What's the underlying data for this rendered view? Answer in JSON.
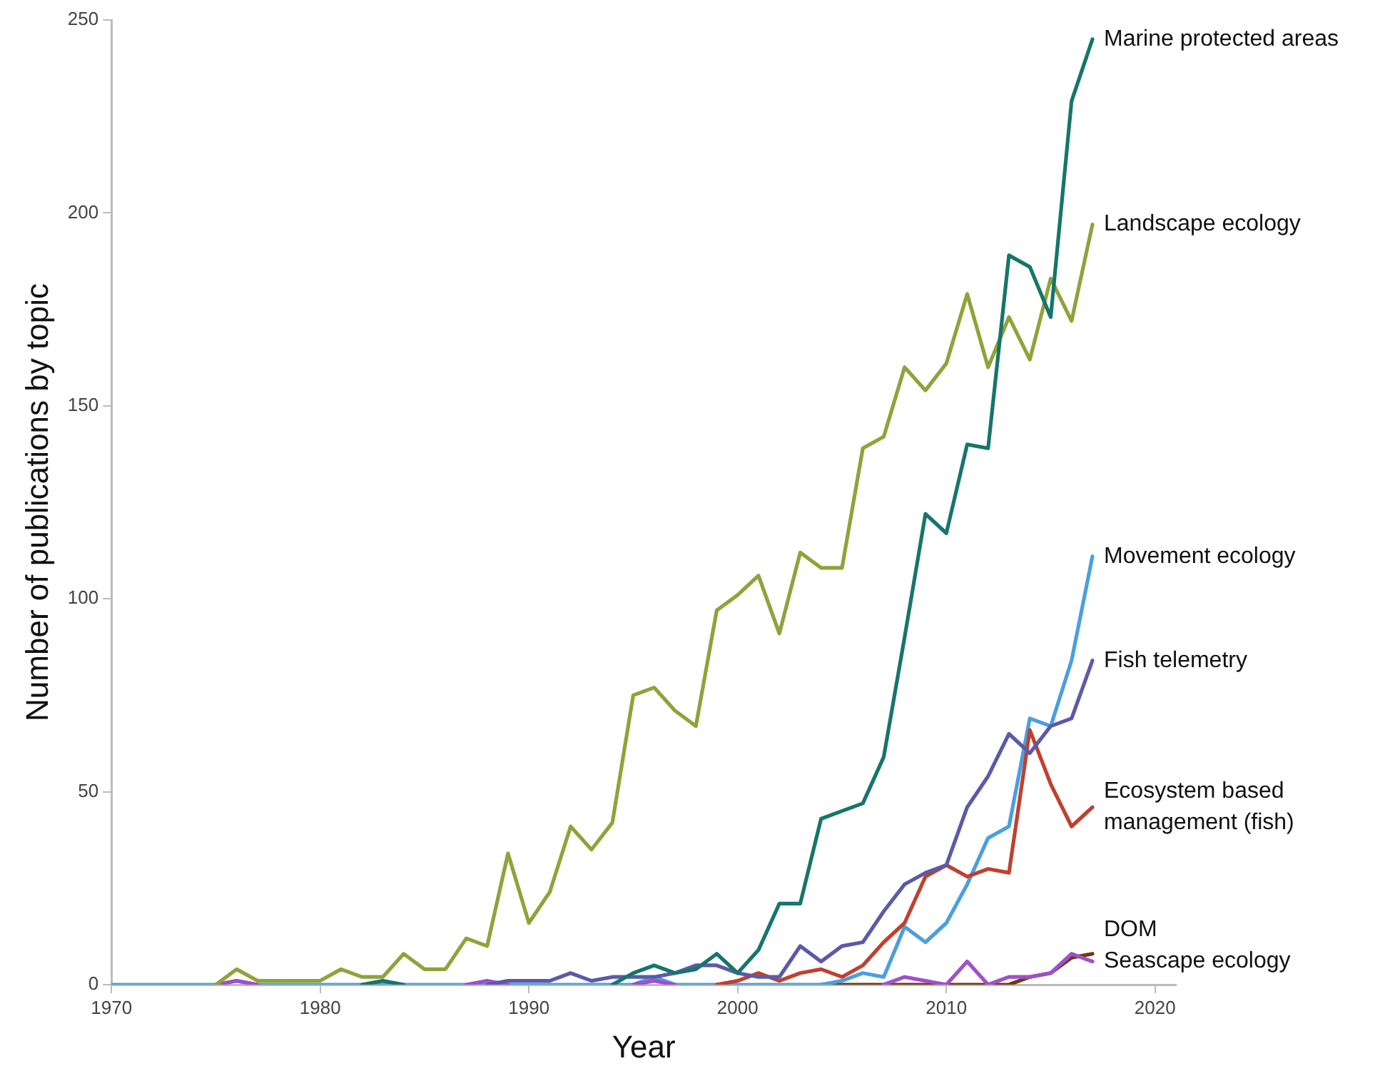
{
  "chart_data": {
    "type": "line",
    "xlabel": "Year",
    "ylabel": "Number of publications by topic",
    "x": [
      1970,
      1971,
      1972,
      1973,
      1974,
      1975,
      1976,
      1977,
      1978,
      1979,
      1980,
      1981,
      1982,
      1983,
      1984,
      1985,
      1986,
      1987,
      1988,
      1989,
      1990,
      1991,
      1992,
      1993,
      1994,
      1995,
      1996,
      1997,
      1998,
      1999,
      2000,
      2001,
      2002,
      2003,
      2004,
      2005,
      2006,
      2007,
      2008,
      2009,
      2010,
      2011,
      2012,
      2013,
      2014,
      2015,
      2016,
      2017
    ],
    "series": [
      {
        "name": "Marine protected areas",
        "color": "#17756b",
        "values": [
          null,
          null,
          null,
          null,
          null,
          null,
          null,
          null,
          null,
          null,
          null,
          null,
          0,
          1,
          0,
          null,
          null,
          null,
          null,
          null,
          null,
          null,
          null,
          null,
          0,
          3,
          5,
          3,
          4,
          8,
          3,
          9,
          21,
          21,
          43,
          45,
          47,
          59,
          90,
          122,
          117,
          140,
          139,
          189,
          186,
          173,
          229,
          245
        ]
      },
      {
        "name": "Landscape ecology",
        "color": "#8fa33a",
        "values": [
          null,
          null,
          null,
          null,
          null,
          0,
          4,
          1,
          1,
          1,
          1,
          4,
          2,
          2,
          8,
          4,
          4,
          12,
          10,
          34,
          16,
          24,
          41,
          35,
          42,
          75,
          77,
          71,
          67,
          97,
          101,
          106,
          91,
          112,
          108,
          108,
          139,
          142,
          160,
          154,
          161,
          179,
          160,
          173,
          162,
          183,
          172,
          197
        ]
      },
      {
        "name": "Fish telemetry",
        "color": "#5b5aa8",
        "values": [
          null,
          null,
          null,
          null,
          null,
          null,
          null,
          null,
          null,
          null,
          null,
          null,
          null,
          null,
          null,
          null,
          null,
          null,
          0,
          1,
          1,
          1,
          3,
          1,
          2,
          2,
          2,
          3,
          5,
          5,
          3,
          2,
          2,
          10,
          6,
          10,
          11,
          19,
          26,
          29,
          31,
          46,
          54,
          65,
          60,
          67,
          69,
          84
        ]
      },
      {
        "name": "Ecosystem based management (fish)",
        "color": "#c0402f",
        "values": [
          null,
          null,
          null,
          null,
          null,
          null,
          null,
          null,
          null,
          null,
          null,
          null,
          null,
          null,
          null,
          null,
          null,
          null,
          null,
          null,
          null,
          null,
          null,
          null,
          null,
          null,
          null,
          null,
          null,
          0,
          1,
          3,
          1,
          3,
          4,
          2,
          5,
          11,
          16,
          28,
          31,
          28,
          30,
          29,
          66,
          52,
          41,
          46
        ]
      },
      {
        "name": "Seascape ecology",
        "color": "#a050c8",
        "values": [
          null,
          null,
          null,
          null,
          null,
          0,
          1,
          0,
          null,
          null,
          null,
          null,
          null,
          null,
          null,
          null,
          null,
          0,
          1,
          0,
          null,
          null,
          null,
          null,
          null,
          0,
          1,
          0,
          null,
          null,
          null,
          null,
          null,
          null,
          null,
          null,
          null,
          0,
          2,
          1,
          0,
          6,
          0,
          2,
          2,
          3,
          8,
          6
        ]
      },
      {
        "name": "Movement ecology",
        "color": "#4a9fe0",
        "values": [
          0,
          0,
          0,
          0,
          0,
          0,
          1,
          0,
          0,
          0,
          0,
          0,
          0,
          0,
          0,
          0,
          0,
          0,
          0,
          0,
          0,
          0,
          0,
          0,
          0,
          0,
          2,
          0,
          0,
          0,
          0,
          0,
          0,
          0,
          0,
          1,
          3,
          2,
          15,
          11,
          16,
          26,
          38,
          41,
          69,
          67,
          84,
          111
        ]
      },
      {
        "name": "DOM",
        "color": "#6b3b12",
        "values": [
          null,
          null,
          null,
          null,
          null,
          null,
          null,
          null,
          null,
          null,
          null,
          null,
          null,
          null,
          null,
          null,
          null,
          null,
          null,
          null,
          null,
          null,
          null,
          null,
          null,
          null,
          null,
          null,
          null,
          null,
          null,
          null,
          null,
          null,
          0,
          0,
          0,
          0,
          0,
          0,
          0,
          0,
          0,
          0,
          2,
          3,
          7,
          8
        ]
      }
    ],
    "xlim": [
      1970,
      2021
    ],
    "xticks": [
      1970,
      1980,
      1990,
      2000,
      2010,
      2020
    ],
    "ylim": [
      0,
      250
    ],
    "yticks": [
      0,
      50,
      100,
      150,
      200,
      250
    ],
    "grid": false,
    "legend": false,
    "marker": "none",
    "line_style": "solid"
  }
}
